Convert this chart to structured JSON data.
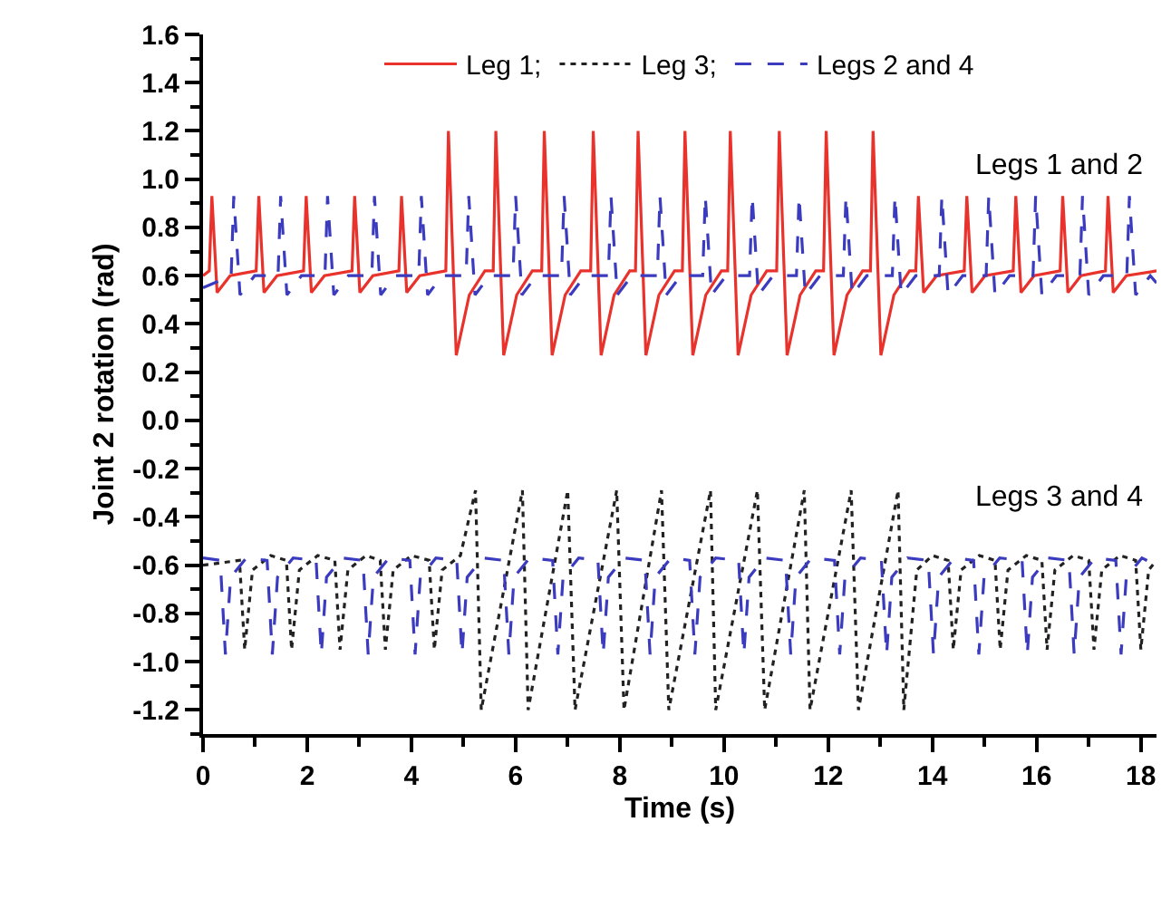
{
  "chart_data": {
    "type": "line",
    "xlabel": "Time (s)",
    "ylabel": "Joint 2 rotation (rad)",
    "xlim": [
      0,
      18.3
    ],
    "xticks": [
      0,
      2,
      4,
      6,
      8,
      10,
      12,
      14,
      16,
      18
    ],
    "ylim": [
      -1.3,
      1.6
    ],
    "yticks": [
      -1.2,
      {
        "value": -1.0,
        "label": "-1.0"
      },
      -0.8,
      -0.6,
      -0.4,
      -0.2,
      {
        "value": 0,
        "label": "0.0"
      },
      0.2,
      0.4,
      0.6,
      0.8,
      {
        "value": 1.0,
        "label": "1.0"
      },
      1.2,
      1.4,
      1.6
    ],
    "legend": "top",
    "marker": "none",
    "annotations": [
      "Legs 1 and 2",
      "Legs 3 and 4"
    ],
    "series": [
      {
        "name": "Leg 1;",
        "color": "#e8322b",
        "line_style": "solid",
        "x": [
          0,
          0.12,
          0.17,
          0.27,
          0.52,
          1.02,
          1.07,
          1.17,
          1.42,
          1.93,
          1.98,
          2.08,
          2.33,
          2.86,
          2.91,
          3.01,
          3.26,
          3.76,
          3.81,
          3.91,
          4.16,
          4.66,
          4.71,
          4.86,
          5.11,
          5.41,
          5.57,
          5.62,
          5.77,
          6.02,
          6.32,
          6.5,
          6.55,
          6.7,
          6.95,
          7.25,
          7.44,
          7.49,
          7.64,
          7.89,
          8.19,
          8.3,
          8.35,
          8.5,
          8.75,
          9.05,
          9.2,
          9.25,
          9.4,
          9.65,
          9.95,
          10.07,
          10.12,
          10.27,
          10.52,
          10.82,
          11.01,
          11.06,
          11.21,
          11.46,
          11.76,
          11.91,
          11.96,
          12.11,
          12.36,
          12.66,
          12.81,
          12.86,
          13.01,
          13.26,
          13.56,
          13.68,
          13.73,
          13.83,
          14.08,
          14.61,
          14.66,
          14.76,
          15.01,
          15.55,
          15.6,
          15.7,
          15.95,
          16.45,
          16.5,
          16.6,
          16.85,
          17.32,
          17.37,
          17.47,
          17.72,
          18.3
        ],
        "values": [
          0.6,
          0.62,
          0.93,
          0.53,
          0.6,
          0.62,
          0.93,
          0.53,
          0.6,
          0.62,
          0.93,
          0.53,
          0.6,
          0.62,
          0.93,
          0.53,
          0.6,
          0.62,
          0.93,
          0.53,
          0.6,
          0.62,
          1.2,
          0.27,
          0.52,
          0.62,
          0.62,
          1.2,
          0.27,
          0.52,
          0.62,
          0.62,
          1.2,
          0.27,
          0.52,
          0.62,
          0.62,
          1.2,
          0.27,
          0.52,
          0.62,
          0.62,
          1.2,
          0.27,
          0.52,
          0.62,
          0.62,
          1.2,
          0.27,
          0.52,
          0.62,
          0.62,
          1.2,
          0.27,
          0.52,
          0.62,
          0.62,
          1.2,
          0.27,
          0.52,
          0.62,
          0.62,
          1.2,
          0.27,
          0.52,
          0.62,
          0.62,
          1.2,
          0.27,
          0.52,
          0.62,
          0.62,
          0.93,
          0.53,
          0.6,
          0.62,
          0.93,
          0.53,
          0.6,
          0.62,
          0.93,
          0.53,
          0.6,
          0.62,
          0.93,
          0.53,
          0.6,
          0.62,
          0.93,
          0.53,
          0.6,
          0.62
        ]
      },
      {
        "name": "Leg 3;",
        "color": "#222222",
        "line_style": "dotted",
        "x": [
          0,
          0.7,
          0.8,
          0.95,
          1.3,
          1.6,
          1.7,
          1.85,
          2.2,
          2.53,
          2.63,
          2.78,
          3.13,
          3.4,
          3.5,
          3.65,
          4.0,
          4.34,
          4.44,
          4.59,
          4.94,
          5.23,
          5.34,
          6.13,
          6.24,
          7.0,
          7.14,
          7.94,
          8.08,
          8.8,
          8.94,
          9.74,
          9.84,
          10.64,
          10.78,
          11.54,
          11.65,
          12.44,
          12.58,
          13.34,
          13.45,
          13.7,
          14.0,
          14.3,
          14.4,
          14.55,
          14.9,
          15.2,
          15.3,
          15.45,
          15.8,
          16.1,
          16.2,
          16.35,
          16.7,
          17.0,
          17.1,
          17.25,
          17.6,
          17.9,
          18.0,
          18.15,
          18.3
        ],
        "values": [
          -0.6,
          -0.58,
          -0.95,
          -0.62,
          -0.56,
          -0.58,
          -0.95,
          -0.62,
          -0.56,
          -0.58,
          -0.95,
          -0.62,
          -0.56,
          -0.58,
          -0.95,
          -0.62,
          -0.56,
          -0.58,
          -0.95,
          -0.62,
          -0.56,
          -0.29,
          -1.2,
          -0.29,
          -1.2,
          -0.29,
          -1.2,
          -0.29,
          -1.2,
          -0.29,
          -1.2,
          -0.29,
          -1.2,
          -0.29,
          -1.2,
          -0.29,
          -1.2,
          -0.29,
          -1.2,
          -0.29,
          -1.2,
          -0.62,
          -0.56,
          -0.58,
          -0.95,
          -0.62,
          -0.56,
          -0.58,
          -0.95,
          -0.62,
          -0.56,
          -0.58,
          -0.95,
          -0.62,
          -0.56,
          -0.58,
          -0.95,
          -0.62,
          -0.56,
          -0.58,
          -0.95,
          -0.62,
          -0.58
        ]
      },
      {
        "name": "Legs 2 and 4",
        "color": "#3b3bbf",
        "line_style": "dashed",
        "x": [
          0,
          0.54,
          0.59,
          0.71,
          0.99,
          1.44,
          1.49,
          1.61,
          1.89,
          2.34,
          2.39,
          2.51,
          2.79,
          3.24,
          3.29,
          3.41,
          3.69,
          4.14,
          4.19,
          4.31,
          4.59,
          5.05,
          5.1,
          5.22,
          5.5,
          5.95,
          6.0,
          6.12,
          6.4,
          6.88,
          6.93,
          7.05,
          7.33,
          7.78,
          7.83,
          7.95,
          8.23,
          8.72,
          8.77,
          8.89,
          9.17,
          9.59,
          9.64,
          9.76,
          10.04,
          10.49,
          10.54,
          10.66,
          10.94,
          11.39,
          11.44,
          11.56,
          11.84,
          12.29,
          12.34,
          12.46,
          12.74,
          13.23,
          13.28,
          13.4,
          13.68,
          14.13,
          14.18,
          14.3,
          14.58,
          15.03,
          15.08,
          15.2,
          15.48,
          15.93,
          15.98,
          16.1,
          16.38,
          16.83,
          16.88,
          17.0,
          17.28,
          17.73,
          17.78,
          17.9,
          18.18,
          18.3
        ],
        "values": [
          0.55,
          0.6,
          0.93,
          0.52,
          0.6,
          0.6,
          0.93,
          0.52,
          0.6,
          0.6,
          0.93,
          0.52,
          0.6,
          0.6,
          0.93,
          0.52,
          0.6,
          0.6,
          0.93,
          0.52,
          0.6,
          0.6,
          0.93,
          0.52,
          0.6,
          0.6,
          0.93,
          0.52,
          0.6,
          0.6,
          0.93,
          0.52,
          0.6,
          0.6,
          0.93,
          0.52,
          0.6,
          0.6,
          0.93,
          0.52,
          0.6,
          0.6,
          0.93,
          0.52,
          0.6,
          0.6,
          0.93,
          0.52,
          0.6,
          0.6,
          0.93,
          0.52,
          0.6,
          0.6,
          0.93,
          0.52,
          0.6,
          0.6,
          0.93,
          0.52,
          0.6,
          0.6,
          0.93,
          0.52,
          0.6,
          0.6,
          0.93,
          0.52,
          0.6,
          0.6,
          0.93,
          0.52,
          0.6,
          0.6,
          0.93,
          0.52,
          0.6,
          0.6,
          0.93,
          0.52,
          0.6,
          0.57
        ]
      },
      {
        "color": "#3b3bbf",
        "line_style": "dashed",
        "x": [
          0,
          0.33,
          0.43,
          0.53,
          0.83,
          1.23,
          1.33,
          1.43,
          1.73,
          2.17,
          2.27,
          2.37,
          2.67,
          3.07,
          3.17,
          3.27,
          3.57,
          3.97,
          4.07,
          4.17,
          4.47,
          4.87,
          4.97,
          5.07,
          5.37,
          5.77,
          5.87,
          5.97,
          6.27,
          6.71,
          6.81,
          6.91,
          7.21,
          7.58,
          7.68,
          7.78,
          8.08,
          8.48,
          8.58,
          8.68,
          8.98,
          9.34,
          9.44,
          9.54,
          9.84,
          10.28,
          10.38,
          10.48,
          10.78,
          11.18,
          11.28,
          11.38,
          11.68,
          12.12,
          12.22,
          12.32,
          12.62,
          13.02,
          13.12,
          13.22,
          13.52,
          13.92,
          14.02,
          14.12,
          14.42,
          14.79,
          14.89,
          14.99,
          15.29,
          15.72,
          15.82,
          15.92,
          16.22,
          16.62,
          16.72,
          16.82,
          17.12,
          17.52,
          17.62,
          17.72,
          18.02,
          18.3
        ],
        "values": [
          -0.57,
          -0.58,
          -0.97,
          -0.65,
          -0.57,
          -0.58,
          -0.97,
          -0.65,
          -0.57,
          -0.58,
          -0.97,
          -0.65,
          -0.57,
          -0.58,
          -0.97,
          -0.65,
          -0.57,
          -0.58,
          -0.97,
          -0.65,
          -0.57,
          -0.58,
          -0.97,
          -0.65,
          -0.57,
          -0.58,
          -0.97,
          -0.65,
          -0.57,
          -0.58,
          -0.97,
          -0.65,
          -0.57,
          -0.58,
          -0.97,
          -0.65,
          -0.57,
          -0.58,
          -0.97,
          -0.65,
          -0.57,
          -0.58,
          -0.97,
          -0.65,
          -0.57,
          -0.58,
          -0.97,
          -0.65,
          -0.57,
          -0.58,
          -0.97,
          -0.65,
          -0.57,
          -0.58,
          -0.97,
          -0.65,
          -0.57,
          -0.58,
          -0.97,
          -0.65,
          -0.57,
          -0.58,
          -0.97,
          -0.65,
          -0.57,
          -0.58,
          -0.97,
          -0.65,
          -0.57,
          -0.58,
          -0.97,
          -0.65,
          -0.57,
          -0.58,
          -0.97,
          -0.65,
          -0.57,
          -0.58,
          -0.97,
          -0.65,
          -0.57,
          -0.6
        ]
      }
    ]
  }
}
